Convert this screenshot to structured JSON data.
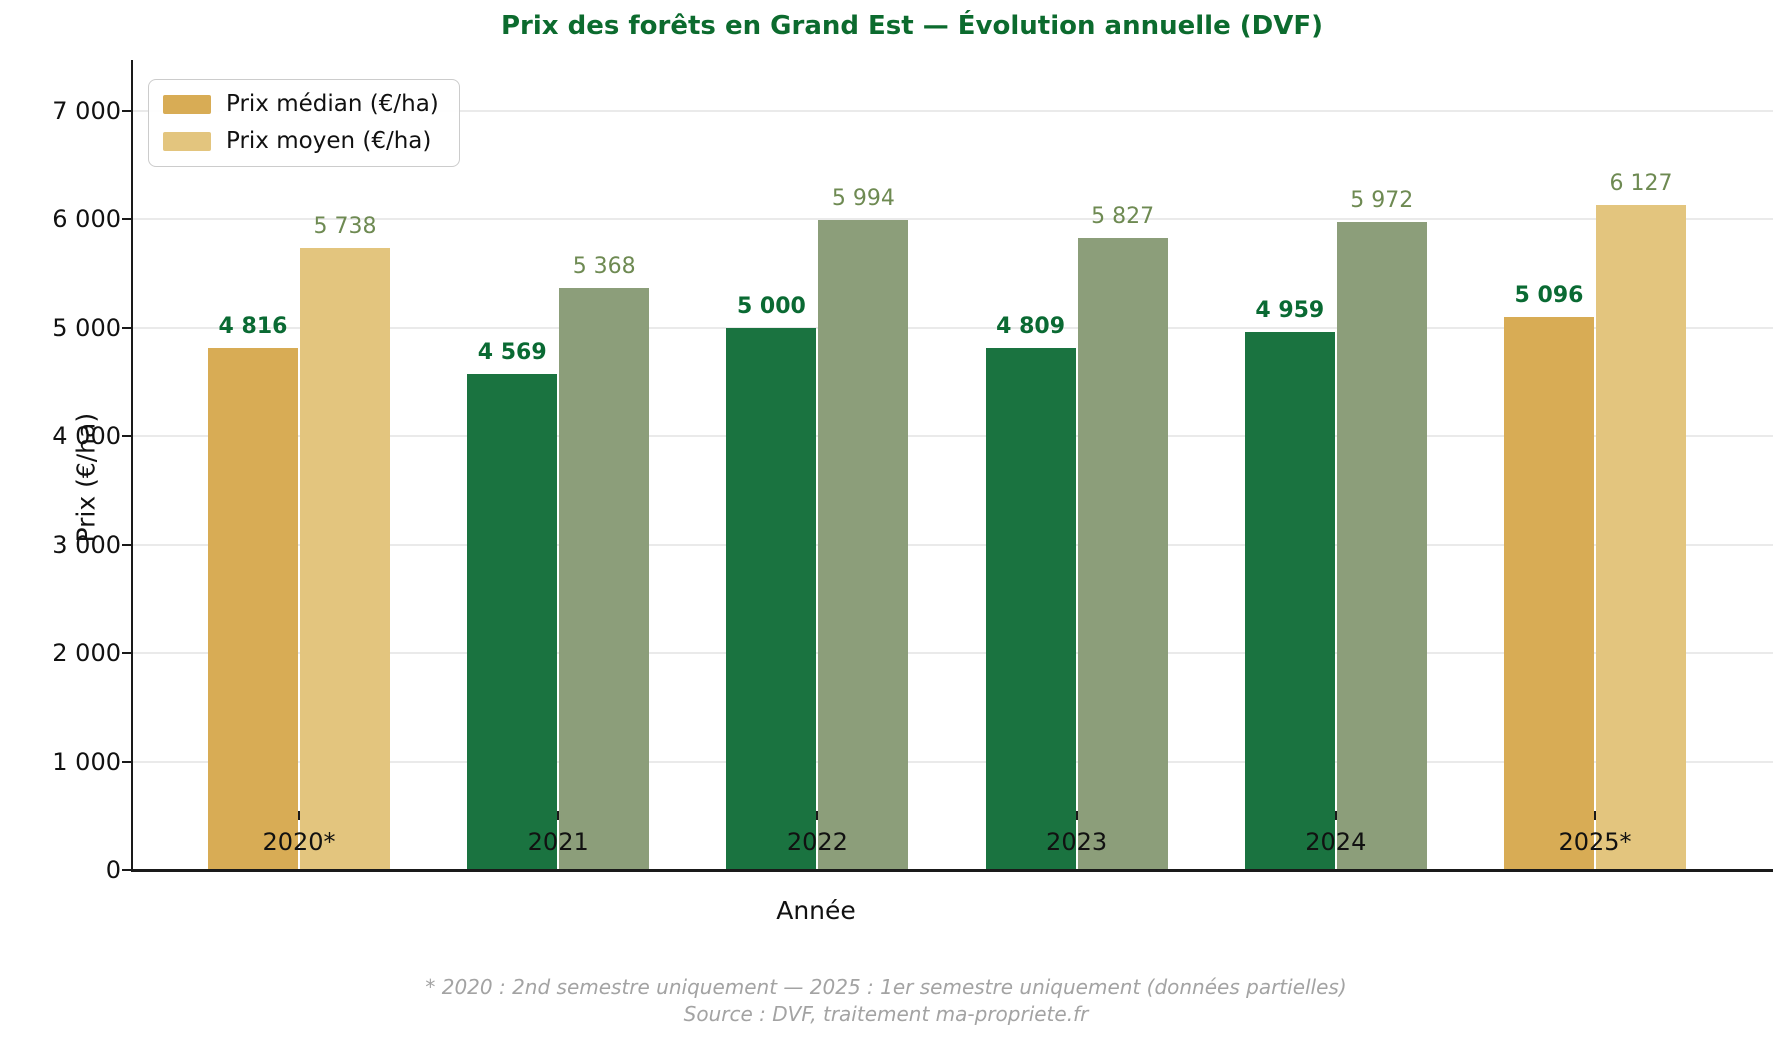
{
  "title": "Prix des forêts en Grand Est — Évolution annuelle (DVF)",
  "legend": [
    {
      "label": "Prix médian (€/ha)",
      "color": "#D8AC55"
    },
    {
      "label": "Prix moyen (€/ha)",
      "color": "#E3C57E"
    }
  ],
  "chart_data": {
    "type": "bar",
    "categories": [
      "2020*",
      "2021",
      "2022",
      "2023",
      "2024",
      "2025*"
    ],
    "series": [
      {
        "name": "Prix médian (€/ha)",
        "values": [
          4816,
          4569,
          5000,
          4809,
          4959,
          5096
        ]
      },
      {
        "name": "Prix moyen (€/ha)",
        "values": [
          5738,
          5368,
          5994,
          5827,
          5972,
          6127
        ]
      }
    ],
    "highlight_partial_years": [
      true,
      false,
      false,
      false,
      false,
      true
    ],
    "title": "Prix des forêts en Grand Est — Évolution annuelle (DVF)",
    "xlabel": "Année",
    "ylabel": "Prix (€/ha)",
    "ylim": [
      0,
      7450
    ],
    "yticks": [
      0,
      1000,
      2000,
      3000,
      4000,
      5000,
      6000,
      7000
    ],
    "grid": true,
    "legend_position": "upper left"
  },
  "colors": {
    "median_gold": "#D8AC55",
    "mean_gold": "#E3C57E",
    "median_green": "#1A7340",
    "mean_green": "#8C9E7A",
    "title": "#0C6B2E",
    "median_label": "#0A6A33",
    "mean_label": "#6E8A52",
    "grid": "#EAEAEA",
    "axis": "#1A1A1A",
    "footnote": "#A3A3A3"
  },
  "footnotes": {
    "line1": "* 2020 : 2nd semestre uniquement — 2025 : 1er semestre uniquement (données partielles)",
    "line2": "Source : DVF, traitement ma-propriete.fr"
  }
}
